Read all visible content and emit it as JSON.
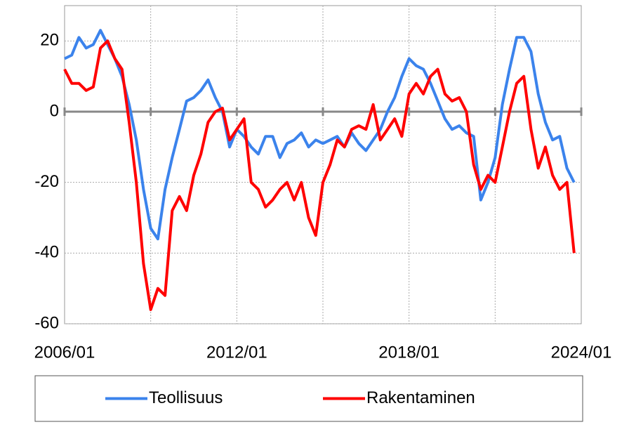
{
  "chart_data": {
    "type": "line",
    "x": [
      "2006/01",
      "2006/04",
      "2006/07",
      "2006/10",
      "2007/01",
      "2007/04",
      "2007/07",
      "2007/10",
      "2008/01",
      "2008/04",
      "2008/07",
      "2008/10",
      "2009/01",
      "2009/04",
      "2009/07",
      "2009/10",
      "2010/01",
      "2010/04",
      "2010/07",
      "2010/10",
      "2011/01",
      "2011/04",
      "2011/07",
      "2011/10",
      "2012/01",
      "2012/04",
      "2012/07",
      "2012/10",
      "2013/01",
      "2013/04",
      "2013/07",
      "2013/10",
      "2014/01",
      "2014/04",
      "2014/07",
      "2014/10",
      "2015/01",
      "2015/04",
      "2015/07",
      "2015/10",
      "2016/01",
      "2016/04",
      "2016/07",
      "2016/10",
      "2017/01",
      "2017/04",
      "2017/07",
      "2017/10",
      "2018/01",
      "2018/04",
      "2018/07",
      "2018/10",
      "2019/01",
      "2019/04",
      "2019/07",
      "2019/10",
      "2020/01",
      "2020/04",
      "2020/07",
      "2020/10",
      "2021/01",
      "2021/04",
      "2021/07",
      "2021/10",
      "2022/01",
      "2022/04",
      "2022/07",
      "2022/10",
      "2023/01",
      "2023/04",
      "2023/07",
      "2023/10"
    ],
    "series": [
      {
        "name": "Teollisuus",
        "color": "#3b83ec",
        "values": [
          15,
          16,
          21,
          18,
          19,
          23,
          19,
          15,
          10,
          2,
          -8,
          -22,
          -33,
          -36,
          -22,
          -13,
          -5,
          3,
          4,
          6,
          9,
          4,
          0,
          -10,
          -5,
          -7,
          -10,
          -12,
          -7,
          -7,
          -13,
          -9,
          -8,
          -6,
          -10,
          -8,
          -9,
          -8,
          -7,
          -10,
          -6,
          -9,
          -11,
          -8,
          -5,
          0,
          4,
          10,
          15,
          13,
          12,
          8,
          3,
          -2,
          -5,
          -4,
          -6,
          -7,
          -25,
          -20,
          -13,
          2,
          12,
          21,
          21,
          17,
          5,
          -3,
          -8,
          -7,
          -16,
          -20
        ]
      },
      {
        "name": "Rakentaminen",
        "color": "#ff0000",
        "values": [
          12,
          8,
          8,
          6,
          7,
          18,
          20,
          15,
          12,
          -3,
          -20,
          -43,
          -56,
          -50,
          -52,
          -28,
          -24,
          -28,
          -18,
          -12,
          -3,
          0,
          1,
          -8,
          -5,
          -2,
          -20,
          -22,
          -27,
          -25,
          -22,
          -20,
          -25,
          -20,
          -30,
          -35,
          -20,
          -15,
          -8,
          -10,
          -5,
          -4,
          -5,
          2,
          -8,
          -5,
          -2,
          -7,
          5,
          8,
          5,
          10,
          12,
          5,
          3,
          4,
          0,
          -15,
          -22,
          -18,
          -20,
          -10,
          0,
          8,
          10,
          -5,
          -16,
          -10,
          -18,
          -22,
          -20,
          -40
        ]
      }
    ],
    "xlim": [
      "2006/01",
      "2024/01"
    ],
    "xticks": [
      "2006/01",
      "2012/01",
      "2018/01",
      "2024/01"
    ],
    "xminorticks": [
      "2009/01",
      "2015/01",
      "2021/01"
    ],
    "ylim": [
      -60,
      30
    ],
    "yticks": [
      -60,
      -40,
      -20,
      0,
      20
    ],
    "grid": true
  }
}
